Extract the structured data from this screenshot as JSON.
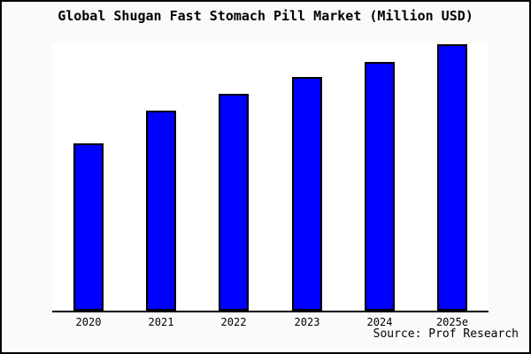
{
  "chart_data": {
    "type": "bar",
    "title": "Global Shugan Fast Stomach Pill Market (Million USD)",
    "categories": [
      "2020",
      "2021",
      "2022",
      "2023",
      "2024",
      "2025e"
    ],
    "values": [
      62.8,
      75.1,
      81.4,
      87.7,
      93.5,
      100
    ],
    "value_note": "no y-axis tick labels shown; values estimated from bar heights, normalized so 2025e = 100",
    "xlabel": "",
    "ylabel": "",
    "y_axis_labels_shown": false,
    "grid": false,
    "legend": false
  },
  "source": {
    "label": "Source: Prof Research"
  },
  "colors": {
    "bar": "#0000ff",
    "bar_border": "#000000",
    "page_background": "#fafafa",
    "plot_background": "#ffffff",
    "axis": "#000000",
    "text": "#000000"
  }
}
